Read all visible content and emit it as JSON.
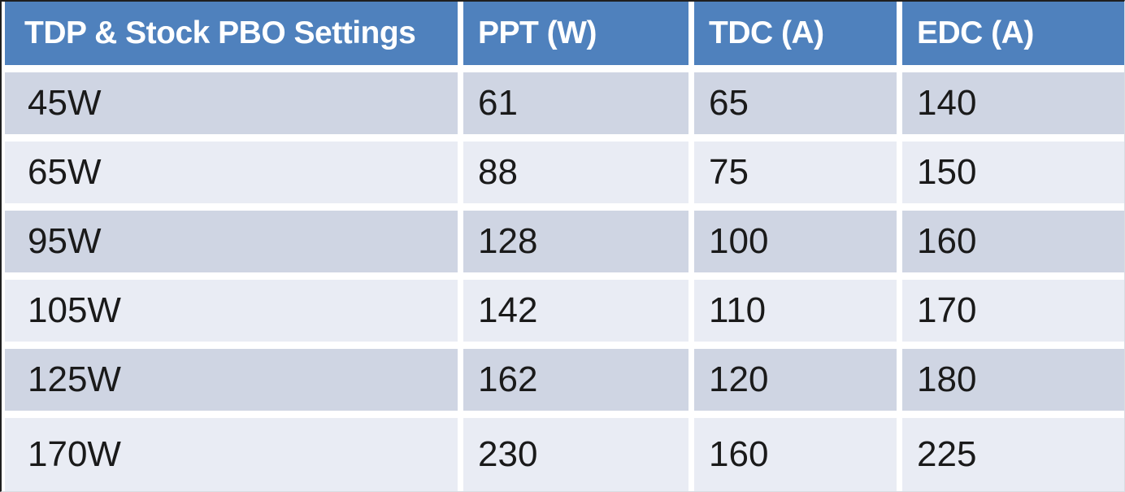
{
  "chart_data": {
    "type": "table",
    "title": "TDP & Stock PBO Settings",
    "columns": [
      "TDP & Stock PBO Settings",
      "PPT (W)",
      "TDC (A)",
      "EDC (A)"
    ],
    "rows": [
      [
        "45W",
        61,
        65,
        140
      ],
      [
        "65W",
        88,
        75,
        150
      ],
      [
        "95W",
        128,
        100,
        160
      ],
      [
        "105W",
        142,
        110,
        170
      ],
      [
        "125W",
        162,
        120,
        180
      ],
      [
        "170W",
        230,
        160,
        225
      ]
    ],
    "row_banding": [
      "dark",
      "light",
      "dark",
      "light",
      "dark",
      "light"
    ],
    "legend_position": "none",
    "grid": "white-gutters-between-cells"
  },
  "colors": {
    "header_bg": "#4F81BD",
    "header_text": "#FFFFFF",
    "band_dark": "#CFD5E3",
    "band_light": "#E9ECF4",
    "cell_text": "#1A1A1A",
    "gap": "#FFFFFF",
    "frame_border": "#1F1F1F"
  }
}
